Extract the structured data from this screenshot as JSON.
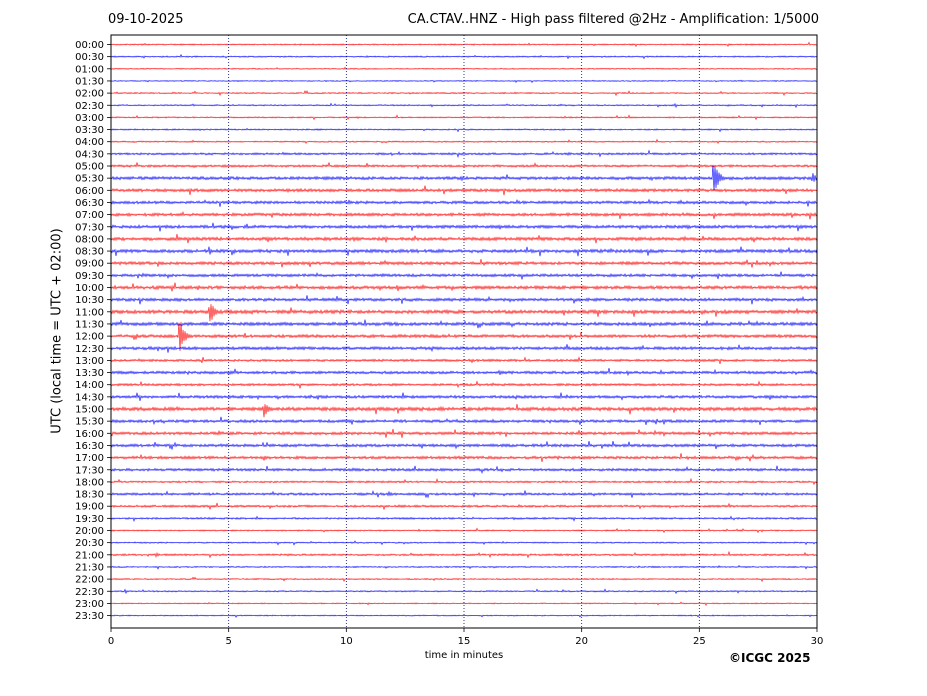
{
  "header": {
    "date": "09-10-2025",
    "title": "CA.CTAV..HNZ - High pass filtered @2Hz - Amplification: 1/5000"
  },
  "footer": {
    "credit": "©ICGC 2025"
  },
  "colors": {
    "trace_a": "#ff0000",
    "trace_b": "#0000ff",
    "grid": "#000080",
    "axis": "#000000"
  },
  "chart_data": {
    "type": "line",
    "title": "CA.CTAV..HNZ - High pass filtered @2Hz - Amplification: 1/5000",
    "xlabel": "time in minutes",
    "ylabel": "UTC (local time = UTC + 02:00)",
    "xlim": [
      0,
      30
    ],
    "x_ticks": [
      0,
      5,
      10,
      15,
      20,
      25,
      30
    ],
    "vertical_grid_minutes": [
      5,
      10,
      15,
      20,
      25
    ],
    "grid_style": "dotted",
    "trace_colors_alternate": [
      "red",
      "blue"
    ],
    "y_ticks": [
      "00:00",
      "00:30",
      "01:00",
      "01:30",
      "02:00",
      "02:30",
      "03:00",
      "03:30",
      "04:00",
      "04:30",
      "05:00",
      "05:30",
      "06:00",
      "06:30",
      "07:00",
      "07:30",
      "08:00",
      "08:30",
      "09:00",
      "09:30",
      "10:00",
      "10:30",
      "11:00",
      "11:30",
      "12:00",
      "12:30",
      "13:00",
      "13:30",
      "14:00",
      "14:30",
      "15:00",
      "15:30",
      "16:00",
      "16:30",
      "17:00",
      "17:30",
      "18:00",
      "18:30",
      "19:00",
      "19:30",
      "20:00",
      "20:30",
      "21:00",
      "21:30",
      "22:00",
      "22:30",
      "23:00",
      "23:30"
    ],
    "noise_level": [
      0.6,
      0.6,
      0.5,
      0.5,
      0.6,
      0.6,
      0.6,
      0.6,
      0.6,
      0.9,
      1.0,
      1.3,
      1.3,
      1.2,
      1.3,
      1.3,
      1.4,
      1.4,
      1.3,
      1.2,
      1.4,
      1.3,
      1.5,
      1.4,
      1.3,
      1.3,
      1.0,
      1.2,
      1.0,
      1.2,
      1.5,
      1.2,
      1.2,
      1.2,
      1.2,
      1.1,
      0.8,
      1.0,
      0.9,
      0.8,
      0.6,
      0.6,
      0.8,
      0.6,
      0.6,
      0.6,
      0.5,
      0.5
    ],
    "events": [
      {
        "row": "05:30",
        "minute": 25.6,
        "amplitude": 24
      },
      {
        "row": "05:30",
        "minute": 29.8,
        "amplitude": 6
      },
      {
        "row": "04:30",
        "minute": 19.4,
        "amplitude": 2
      },
      {
        "row": "06:30",
        "minute": 5.3,
        "amplitude": 2
      },
      {
        "row": "07:00",
        "minute": 10.1,
        "amplitude": 2
      },
      {
        "row": "11:00",
        "minute": 4.2,
        "amplitude": 14
      },
      {
        "row": "12:00",
        "minute": 2.9,
        "amplitude": 22
      },
      {
        "row": "13:30",
        "minute": 16.5,
        "amplitude": 3
      },
      {
        "row": "14:30",
        "minute": 28.0,
        "amplitude": 3
      },
      {
        "row": "15:00",
        "minute": 6.5,
        "amplitude": 9
      },
      {
        "row": "15:00",
        "minute": 14.0,
        "amplitude": 3
      },
      {
        "row": "15:00",
        "minute": 2.8,
        "amplitude": 2.5
      },
      {
        "row": "17:00",
        "minute": 6.5,
        "amplitude": 3
      },
      {
        "row": "18:30",
        "minute": 11.8,
        "amplitude": 3
      },
      {
        "row": "19:00",
        "minute": 3.3,
        "amplitude": 2
      },
      {
        "row": "21:00",
        "minute": 1.9,
        "amplitude": 2.5
      }
    ]
  }
}
